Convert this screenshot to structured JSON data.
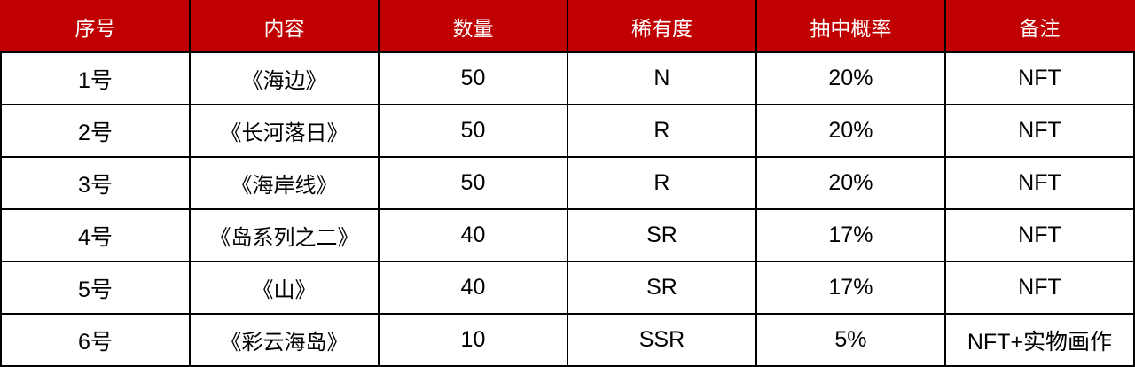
{
  "table": {
    "accent_color": "#c00000",
    "border_color": "#000000",
    "headers": [
      "序号",
      "内容",
      "数量",
      "稀有度",
      "抽中概率",
      "备注"
    ],
    "rows": [
      [
        "1号",
        "《海边》",
        "50",
        "N",
        "20%",
        "NFT"
      ],
      [
        "2号",
        "《长河落日》",
        "50",
        "R",
        "20%",
        "NFT"
      ],
      [
        "3号",
        "《海岸线》",
        "50",
        "R",
        "20%",
        "NFT"
      ],
      [
        "4号",
        "《岛系列之二》",
        "40",
        "SR",
        "17%",
        "NFT"
      ],
      [
        "5号",
        "《山》",
        "40",
        "SR",
        "17%",
        "NFT"
      ],
      [
        "6号",
        "《彩云海岛》",
        "10",
        "SSR",
        "5%",
        "NFT+实物画作"
      ]
    ]
  }
}
